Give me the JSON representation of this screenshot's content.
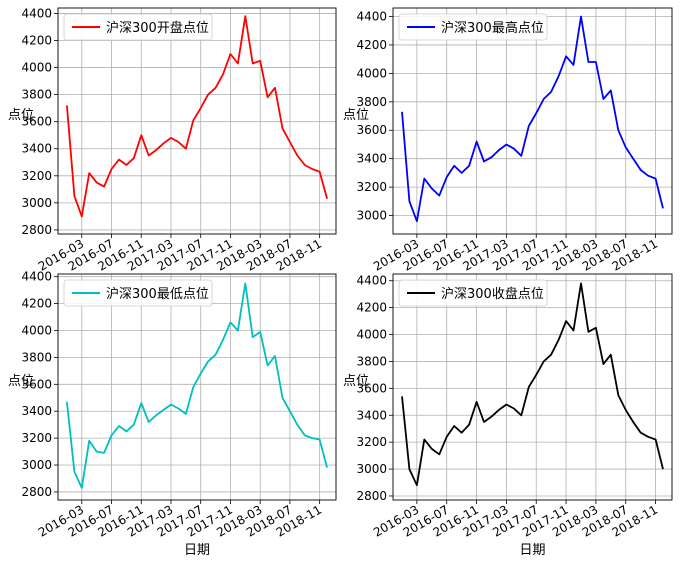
{
  "chart_data": [
    {
      "type": "line",
      "color": "#ff0000",
      "legend": "沪深300开盘点位",
      "legend_position": "upper-left",
      "grid": true,
      "ylabel": "点位",
      "xlabel": "",
      "ylim": [
        2770,
        4440
      ],
      "yticks": [
        2800,
        3000,
        3200,
        3400,
        3600,
        3800,
        4000,
        4200,
        4400
      ],
      "xticks": [
        "2016-03",
        "2016-07",
        "2016-11",
        "2017-03",
        "2017-07",
        "2017-11",
        "2018-03",
        "2018-07",
        "2018-11"
      ],
      "series": [
        {
          "name": "沪深300开盘点位",
          "x": [
            "2016-01",
            "2016-02",
            "2016-03",
            "2016-04",
            "2016-05",
            "2016-06",
            "2016-07",
            "2016-08",
            "2016-09",
            "2016-10",
            "2016-11",
            "2016-12",
            "2017-01",
            "2017-02",
            "2017-03",
            "2017-04",
            "2017-05",
            "2017-06",
            "2017-07",
            "2017-08",
            "2017-09",
            "2017-10",
            "2017-11",
            "2017-12",
            "2018-01",
            "2018-02",
            "2018-03",
            "2018-04",
            "2018-05",
            "2018-06",
            "2018-07",
            "2018-08",
            "2018-09",
            "2018-10",
            "2018-11",
            "2018-12"
          ],
          "values": [
            3720,
            3050,
            2900,
            3220,
            3150,
            3120,
            3250,
            3320,
            3280,
            3330,
            3500,
            3350,
            3390,
            3440,
            3480,
            3450,
            3400,
            3610,
            3700,
            3800,
            3850,
            3950,
            4100,
            4030,
            4380,
            4030,
            4050,
            3780,
            3850,
            3550,
            3450,
            3350,
            3280,
            3250,
            3230,
            3030
          ]
        }
      ]
    },
    {
      "type": "line",
      "color": "#0000ff",
      "legend": "沪深300最高点位",
      "legend_position": "upper-left",
      "grid": true,
      "ylabel": "点位",
      "xlabel": "",
      "ylim": [
        2870,
        4460
      ],
      "yticks": [
        3000,
        3200,
        3400,
        3600,
        3800,
        4000,
        4200,
        4400
      ],
      "xticks": [
        "2016-03",
        "2016-07",
        "2016-11",
        "2017-03",
        "2017-07",
        "2017-11",
        "2018-03",
        "2018-07",
        "2018-11"
      ],
      "series": [
        {
          "name": "沪深300最高点位",
          "x": [
            "2016-01",
            "2016-02",
            "2016-03",
            "2016-04",
            "2016-05",
            "2016-06",
            "2016-07",
            "2016-08",
            "2016-09",
            "2016-10",
            "2016-11",
            "2016-12",
            "2017-01",
            "2017-02",
            "2017-03",
            "2017-04",
            "2017-05",
            "2017-06",
            "2017-07",
            "2017-08",
            "2017-09",
            "2017-10",
            "2017-11",
            "2017-12",
            "2018-01",
            "2018-02",
            "2018-03",
            "2018-04",
            "2018-05",
            "2018-06",
            "2018-07",
            "2018-08",
            "2018-09",
            "2018-10",
            "2018-11",
            "2018-12"
          ],
          "values": [
            3730,
            3100,
            2960,
            3260,
            3190,
            3140,
            3270,
            3350,
            3300,
            3350,
            3520,
            3380,
            3410,
            3460,
            3500,
            3470,
            3420,
            3630,
            3720,
            3820,
            3870,
            3980,
            4120,
            4060,
            4400,
            4080,
            4080,
            3820,
            3880,
            3600,
            3480,
            3400,
            3320,
            3280,
            3260,
            3050
          ]
        }
      ]
    },
    {
      "type": "line",
      "color": "#00bfbf",
      "legend": "沪深300最低点位",
      "legend_position": "upper-left",
      "grid": true,
      "ylabel": "点位",
      "xlabel": "日期",
      "ylim": [
        2740,
        4420
      ],
      "yticks": [
        2800,
        3000,
        3200,
        3400,
        3600,
        3800,
        4000,
        4200,
        4400
      ],
      "xticks": [
        "2016-03",
        "2016-07",
        "2016-11",
        "2017-03",
        "2017-07",
        "2017-11",
        "2018-03",
        "2018-07",
        "2018-11"
      ],
      "series": [
        {
          "name": "沪深300最低点位",
          "x": [
            "2016-01",
            "2016-02",
            "2016-03",
            "2016-04",
            "2016-05",
            "2016-06",
            "2016-07",
            "2016-08",
            "2016-09",
            "2016-10",
            "2016-11",
            "2016-12",
            "2017-01",
            "2017-02",
            "2017-03",
            "2017-04",
            "2017-05",
            "2017-06",
            "2017-07",
            "2017-08",
            "2017-09",
            "2017-10",
            "2017-11",
            "2017-12",
            "2018-01",
            "2018-02",
            "2018-03",
            "2018-04",
            "2018-05",
            "2018-06",
            "2018-07",
            "2018-08",
            "2018-09",
            "2018-10",
            "2018-11",
            "2018-12"
          ],
          "values": [
            3470,
            2950,
            2830,
            3180,
            3100,
            3090,
            3220,
            3290,
            3250,
            3300,
            3460,
            3320,
            3370,
            3410,
            3450,
            3420,
            3380,
            3580,
            3680,
            3770,
            3820,
            3930,
            4060,
            4000,
            4350,
            3950,
            3990,
            3740,
            3810,
            3500,
            3400,
            3300,
            3220,
            3200,
            3190,
            2980
          ]
        }
      ]
    },
    {
      "type": "line",
      "color": "#000000",
      "legend": "沪深300收盘点位",
      "legend_position": "upper-left",
      "grid": true,
      "ylabel": "点位",
      "xlabel": "日期",
      "ylim": [
        2770,
        4450
      ],
      "yticks": [
        2800,
        3000,
        3200,
        3400,
        3600,
        3800,
        4000,
        4200,
        4400
      ],
      "xticks": [
        "2016-03",
        "2016-07",
        "2016-11",
        "2017-03",
        "2017-07",
        "2017-11",
        "2018-03",
        "2018-07",
        "2018-11"
      ],
      "series": [
        {
          "name": "沪深300收盘点位",
          "x": [
            "2016-01",
            "2016-02",
            "2016-03",
            "2016-04",
            "2016-05",
            "2016-06",
            "2016-07",
            "2016-08",
            "2016-09",
            "2016-10",
            "2016-11",
            "2016-12",
            "2017-01",
            "2017-02",
            "2017-03",
            "2017-04",
            "2017-05",
            "2017-06",
            "2017-07",
            "2017-08",
            "2017-09",
            "2017-10",
            "2017-11",
            "2017-12",
            "2018-01",
            "2018-02",
            "2018-03",
            "2018-04",
            "2018-05",
            "2018-06",
            "2018-07",
            "2018-08",
            "2018-09",
            "2018-10",
            "2018-11",
            "2018-12"
          ],
          "values": [
            3540,
            3000,
            2880,
            3220,
            3150,
            3110,
            3240,
            3320,
            3270,
            3330,
            3500,
            3350,
            3390,
            3440,
            3480,
            3450,
            3400,
            3610,
            3700,
            3800,
            3850,
            3960,
            4100,
            4030,
            4380,
            4020,
            4050,
            3780,
            3850,
            3550,
            3440,
            3350,
            3270,
            3240,
            3220,
            3000
          ]
        }
      ]
    }
  ]
}
